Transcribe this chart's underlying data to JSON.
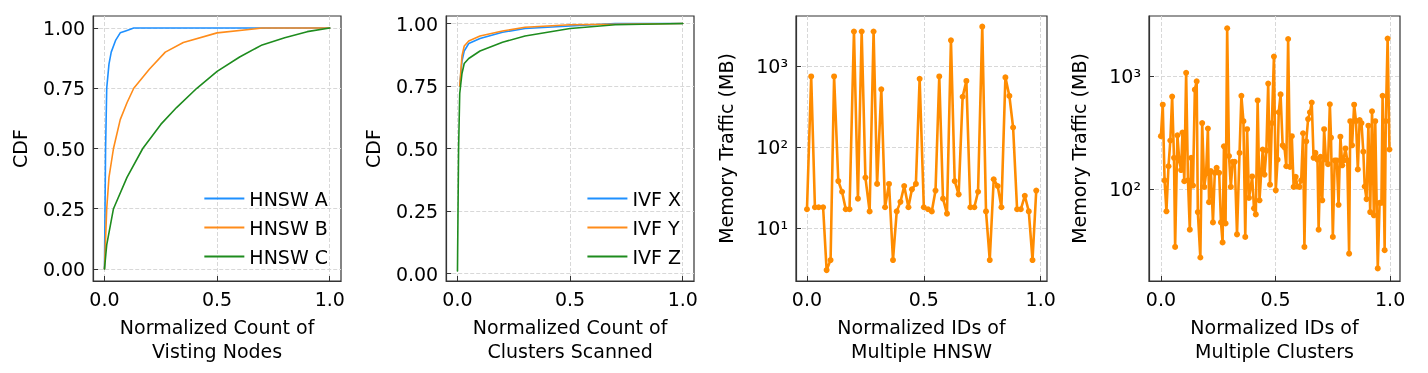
{
  "chart_data": [
    {
      "type": "line",
      "xlabel": "Normalized Count of\nVisting Nodes",
      "ylabel": "CDF",
      "xlim": [
        -0.05,
        1.05
      ],
      "ylim": [
        -0.05,
        1.05
      ],
      "xticks": [
        {
          "value": 0,
          "label": "0.0"
        },
        {
          "value": 0.5,
          "label": "0.5"
        },
        {
          "value": 1,
          "label": "1.0"
        }
      ],
      "yticks": [
        {
          "value": 0,
          "label": "0.00"
        },
        {
          "value": 0.25,
          "label": "0.25"
        },
        {
          "value": 0.5,
          "label": "0.50"
        },
        {
          "value": 0.75,
          "label": "0.75"
        },
        {
          "value": 1,
          "label": "1.00"
        }
      ],
      "grid": true,
      "legend": "bottom right",
      "marker": "none",
      "series": [
        {
          "name": "HNSW A",
          "color": "#1e90ff",
          "x": [
            0,
            0.005,
            0.01,
            0.02,
            0.03,
            0.05,
            0.07,
            0.1,
            0.13,
            1
          ],
          "values": [
            0,
            0.5,
            0.75,
            0.85,
            0.9,
            0.95,
            0.98,
            0.99,
            1,
            1
          ]
        },
        {
          "name": "HNSW B",
          "color": "#ff8c1a",
          "x": [
            0,
            0.01,
            0.02,
            0.04,
            0.07,
            0.1,
            0.13,
            0.2,
            0.27,
            0.35,
            0.5,
            0.7,
            1
          ],
          "values": [
            0,
            0.25,
            0.38,
            0.5,
            0.62,
            0.69,
            0.75,
            0.83,
            0.9,
            0.94,
            0.98,
            1,
            1
          ]
        },
        {
          "name": "HNSW C",
          "color": "#1e8c1e",
          "x": [
            0,
            0.01,
            0.04,
            0.1,
            0.17,
            0.25,
            0.32,
            0.41,
            0.5,
            0.6,
            0.7,
            0.8,
            0.9,
            1
          ],
          "values": [
            0,
            0.1,
            0.25,
            0.38,
            0.5,
            0.6,
            0.67,
            0.75,
            0.82,
            0.88,
            0.93,
            0.96,
            0.985,
            1
          ]
        }
      ]
    },
    {
      "type": "line",
      "xlabel": "Normalized Count of\nClusters Scanned",
      "ylabel": "CDF",
      "xlim": [
        -0.05,
        1.05
      ],
      "ylim": [
        -0.03,
        1.03
      ],
      "xticks": [
        {
          "value": 0,
          "label": "0.0"
        },
        {
          "value": 0.5,
          "label": "0.5"
        },
        {
          "value": 1,
          "label": "1.0"
        }
      ],
      "yticks": [
        {
          "value": 0,
          "label": "0.00"
        },
        {
          "value": 0.25,
          "label": "0.25"
        },
        {
          "value": 0.5,
          "label": "0.50"
        },
        {
          "value": 0.75,
          "label": "0.75"
        },
        {
          "value": 1,
          "label": "1.00"
        }
      ],
      "grid": true,
      "legend": "bottom right",
      "marker": "none",
      "series": [
        {
          "name": "IVF X",
          "color": "#1e90ff",
          "x": [
            0.01,
            0.02,
            0.03,
            0.05,
            0.1,
            0.2,
            0.3,
            0.5,
            0.7,
            1
          ],
          "values": [
            0.75,
            0.85,
            0.89,
            0.92,
            0.94,
            0.965,
            0.98,
            0.99,
            1,
            1
          ]
        },
        {
          "name": "IVF Y",
          "color": "#ff8c1a",
          "x": [
            0.01,
            0.02,
            0.03,
            0.05,
            0.1,
            0.2,
            0.3,
            0.5,
            1
          ],
          "values": [
            0.75,
            0.87,
            0.91,
            0.93,
            0.95,
            0.97,
            0.985,
            0.995,
            1
          ]
        },
        {
          "name": "IVF Z",
          "color": "#1e8c1e",
          "x": [
            0,
            0.005,
            0.01,
            0.02,
            0.03,
            0.05,
            0.1,
            0.2,
            0.3,
            0.5,
            0.7,
            1
          ],
          "values": [
            0.01,
            0.5,
            0.72,
            0.8,
            0.84,
            0.86,
            0.89,
            0.925,
            0.95,
            0.98,
            0.995,
            1
          ]
        }
      ]
    },
    {
      "type": "line",
      "xlabel": "Normalized IDs of\nMultiple HNSW",
      "ylabel": "Memory Traffic (MB)",
      "log": "y",
      "xlim": [
        -0.047,
        1.027
      ],
      "ylim": [
        2.2,
        4200
      ],
      "xticks": [
        {
          "value": 0,
          "label": "0.0"
        },
        {
          "value": 0.5,
          "label": "0.5"
        },
        {
          "value": 1,
          "label": "1.0"
        }
      ],
      "yticks": [
        {
          "value": 10,
          "label": "10¹"
        },
        {
          "value": 100,
          "label": "10²"
        },
        {
          "value": 1000,
          "label": "10³"
        }
      ],
      "grid": true,
      "marker": "circle",
      "series": [
        {
          "color": "#ff8c00",
          "x": [
            0,
            0.018,
            0.034,
            0.05,
            0.069,
            0.084,
            0.101,
            0.116,
            0.134,
            0.15,
            0.166,
            0.182,
            0.201,
            0.218,
            0.234,
            0.25,
            0.268,
            0.285,
            0.3,
            0.318,
            0.334,
            0.351,
            0.368,
            0.384,
            0.4,
            0.416,
            0.434,
            0.449,
            0.466,
            0.482,
            0.5,
            0.518,
            0.534,
            0.55,
            0.566,
            0.582,
            0.599,
            0.616,
            0.632,
            0.649,
            0.666,
            0.682,
            0.699,
            0.716,
            0.732,
            0.75,
            0.766,
            0.782,
            0.799,
            0.816,
            0.832,
            0.849,
            0.866,
            0.882,
            0.899,
            0.915,
            0.932,
            0.949,
            0.965,
            0.981
          ],
          "values": [
            17,
            750,
            18,
            18,
            18,
            3,
            4,
            750,
            38,
            28,
            17,
            17,
            2700,
            23,
            2700,
            42,
            16,
            2700,
            35,
            520,
            18,
            35,
            4,
            16,
            21,
            33,
            18,
            30,
            35,
            700,
            18,
            17,
            16,
            29,
            750,
            23,
            15,
            2100,
            38,
            26,
            420,
            660,
            18,
            18,
            28,
            3100,
            16,
            4,
            40,
            33,
            18,
            730,
            430,
            175,
            17,
            17,
            25,
            16,
            4,
            29
          ]
        }
      ]
    },
    {
      "type": "line",
      "xlabel": "Normalized IDs of\nMultiple Clusters",
      "ylabel": "Memory Traffic (MB)",
      "log": "y",
      "xlim": [
        -0.052,
        1.043
      ],
      "ylim": [
        15.5,
        3400
      ],
      "xticks": [
        {
          "value": 0,
          "label": "0.0"
        },
        {
          "value": 0.5,
          "label": "0.5"
        },
        {
          "value": 1,
          "label": "1.0"
        }
      ],
      "yticks": [
        {
          "value": 100,
          "label": "10²"
        },
        {
          "value": 1000,
          "label": "10³"
        }
      ],
      "grid": true,
      "marker": "circle",
      "series": [
        {
          "color": "#ff8c00",
          "x": [
            0,
            0.008,
            0.016,
            0.024,
            0.033,
            0.041,
            0.049,
            0.057,
            0.062,
            0.072,
            0.08,
            0.088,
            0.094,
            0.102,
            0.11,
            0.118,
            0.126,
            0.132,
            0.14,
            0.148,
            0.156,
            0.161,
            0.172,
            0.18,
            0.189,
            0.197,
            0.205,
            0.21,
            0.218,
            0.227,
            0.235,
            0.243,
            0.254,
            0.262,
            0.269,
            0.275,
            0.282,
            0.289,
            0.297,
            0.305,
            0.313,
            0.322,
            0.332,
            0.343,
            0.351,
            0.36,
            0.368,
            0.376,
            0.384,
            0.392,
            0.398,
            0.406,
            0.414,
            0.422,
            0.43,
            0.438,
            0.444,
            0.452,
            0.46,
            0.468,
            0.476,
            0.484,
            0.493,
            0.501,
            0.509,
            0.514,
            0.522,
            0.531,
            0.539,
            0.547,
            0.555,
            0.563,
            0.571,
            0.579,
            0.588,
            0.596,
            0.604,
            0.612,
            0.62,
            0.626,
            0.634,
            0.642,
            0.65,
            0.658,
            0.666,
            0.674,
            0.683,
            0.688,
            0.696,
            0.704,
            0.712,
            0.72,
            0.729,
            0.737,
            0.742,
            0.75,
            0.758,
            0.767,
            0.775,
            0.783,
            0.791,
            0.796,
            0.805,
            0.813,
            0.821,
            0.826,
            0.834,
            0.843,
            0.851,
            0.859,
            0.867,
            0.875,
            0.883,
            0.889,
            0.897,
            0.905,
            0.913,
            0.921,
            0.929,
            0.935,
            0.946,
            0.954,
            0.962,
            0.967,
            0.976,
            0.981,
            0.989,
            0.997
          ],
          "values": [
            295,
            560,
            120,
            64,
            160,
            270,
            660,
            190,
            31,
            300,
            180,
            148,
            318,
            118,
            1070,
            120,
            44,
            190,
            108,
            760,
            900,
            63,
            25,
            385,
            105,
            138,
            345,
            77,
            145,
            51,
            140,
            155,
            140,
            51,
            34,
            240,
            50,
            2650,
            197,
            105,
            175,
            175,
            40,
            210,
            670,
            400,
            38,
            340,
            84,
            105,
            130,
            68,
            60,
            610,
            80,
            145,
            225,
            135,
            220,
            860,
            110,
            385,
            1490,
            98,
            183,
            480,
            690,
            245,
            235,
            160,
            2130,
            158,
            295,
            105,
            129,
            106,
            105,
            120,
            313,
            31,
            265,
            418,
            480,
            585,
            190,
            210,
            183,
            44,
            194,
            80,
            340,
            183,
            167,
            565,
            286,
            38,
            180,
            180,
            73,
            292,
            163,
            180,
            230,
            180,
            27,
            400,
            245,
            560,
            400,
            150,
            410,
            385,
            215,
            106,
            82,
            365,
            63,
            490,
            59,
            400,
            20,
            76,
            76,
            670,
            29,
            400,
            2150,
            225
          ]
        }
      ]
    }
  ]
}
